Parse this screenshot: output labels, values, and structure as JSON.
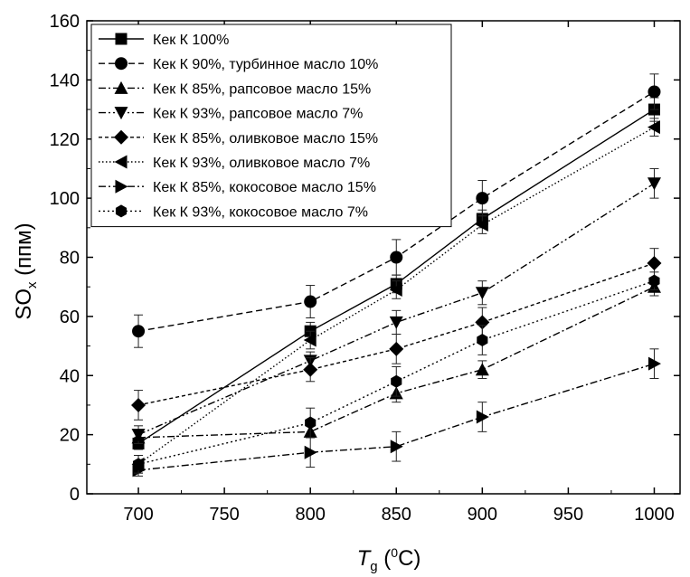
{
  "chart_data": {
    "type": "line",
    "xlabel": {
      "main": "T",
      "sub": "g",
      "open": "(",
      "sup": "0",
      "unit": "C)"
    },
    "ylabel": {
      "main": "SO",
      "sub": "x",
      "unit": "(ппм)"
    },
    "xlim": [
      670,
      1015
    ],
    "ylim": [
      0,
      160
    ],
    "xticks": [
      700,
      750,
      800,
      850,
      900,
      950,
      1000
    ],
    "yticks": [
      0,
      20,
      40,
      60,
      80,
      100,
      120,
      140,
      160
    ],
    "legend_position": "top-left",
    "grid": false,
    "x": [
      700,
      800,
      850,
      900,
      1000
    ],
    "series": [
      {
        "name": "Кек К 100%",
        "marker": "square",
        "dash": "solid",
        "values": [
          17,
          55,
          71,
          93,
          130
        ],
        "errors": [
          2,
          3,
          3,
          3,
          4
        ]
      },
      {
        "name": "Кек К 90%, турбинное масло 10%",
        "marker": "circle",
        "dash": "dashed",
        "values": [
          55,
          65,
          80,
          100,
          136
        ],
        "errors": [
          5.5,
          5.5,
          6,
          6,
          6
        ]
      },
      {
        "name": "Кек К 85%, рапсовое  масло 15%",
        "marker": "triangle-up",
        "dash": "dashdot",
        "values": [
          19,
          21,
          34,
          42,
          70
        ],
        "errors": [
          2,
          2,
          3,
          3,
          3
        ]
      },
      {
        "name": "Кек К 93%, рапсовое масло 7%",
        "marker": "triangle-down",
        "dash": "dashdotdot",
        "values": [
          20,
          45,
          58,
          68,
          105
        ],
        "errors": [
          3,
          3,
          4,
          4,
          5
        ]
      },
      {
        "name": "Кек К 85%, оливковое масло 15%",
        "marker": "diamond",
        "dash": "shortdash",
        "values": [
          30,
          42,
          49,
          58,
          78
        ],
        "errors": [
          5,
          4,
          5,
          5,
          5
        ]
      },
      {
        "name": "Кек К 93%, оливковое масло 7%",
        "marker": "triangle-left",
        "dash": "dotted",
        "values": [
          10,
          52,
          69,
          91,
          124
        ],
        "errors": [
          3,
          3,
          3,
          3,
          3
        ]
      },
      {
        "name": "Кек К 85%, кокосовое масло 15%",
        "marker": "triangle-right",
        "dash": "dashdot",
        "values": [
          8,
          14,
          16,
          26,
          44
        ],
        "errors": [
          2,
          5,
          5,
          5,
          5
        ]
      },
      {
        "name": "Кек К 93%, кокосовое масло 7%",
        "marker": "hexagon",
        "dash": "shortdot",
        "values": [
          10,
          24,
          38,
          52,
          72
        ],
        "errors": [
          3,
          5,
          5,
          5,
          3
        ]
      }
    ]
  }
}
